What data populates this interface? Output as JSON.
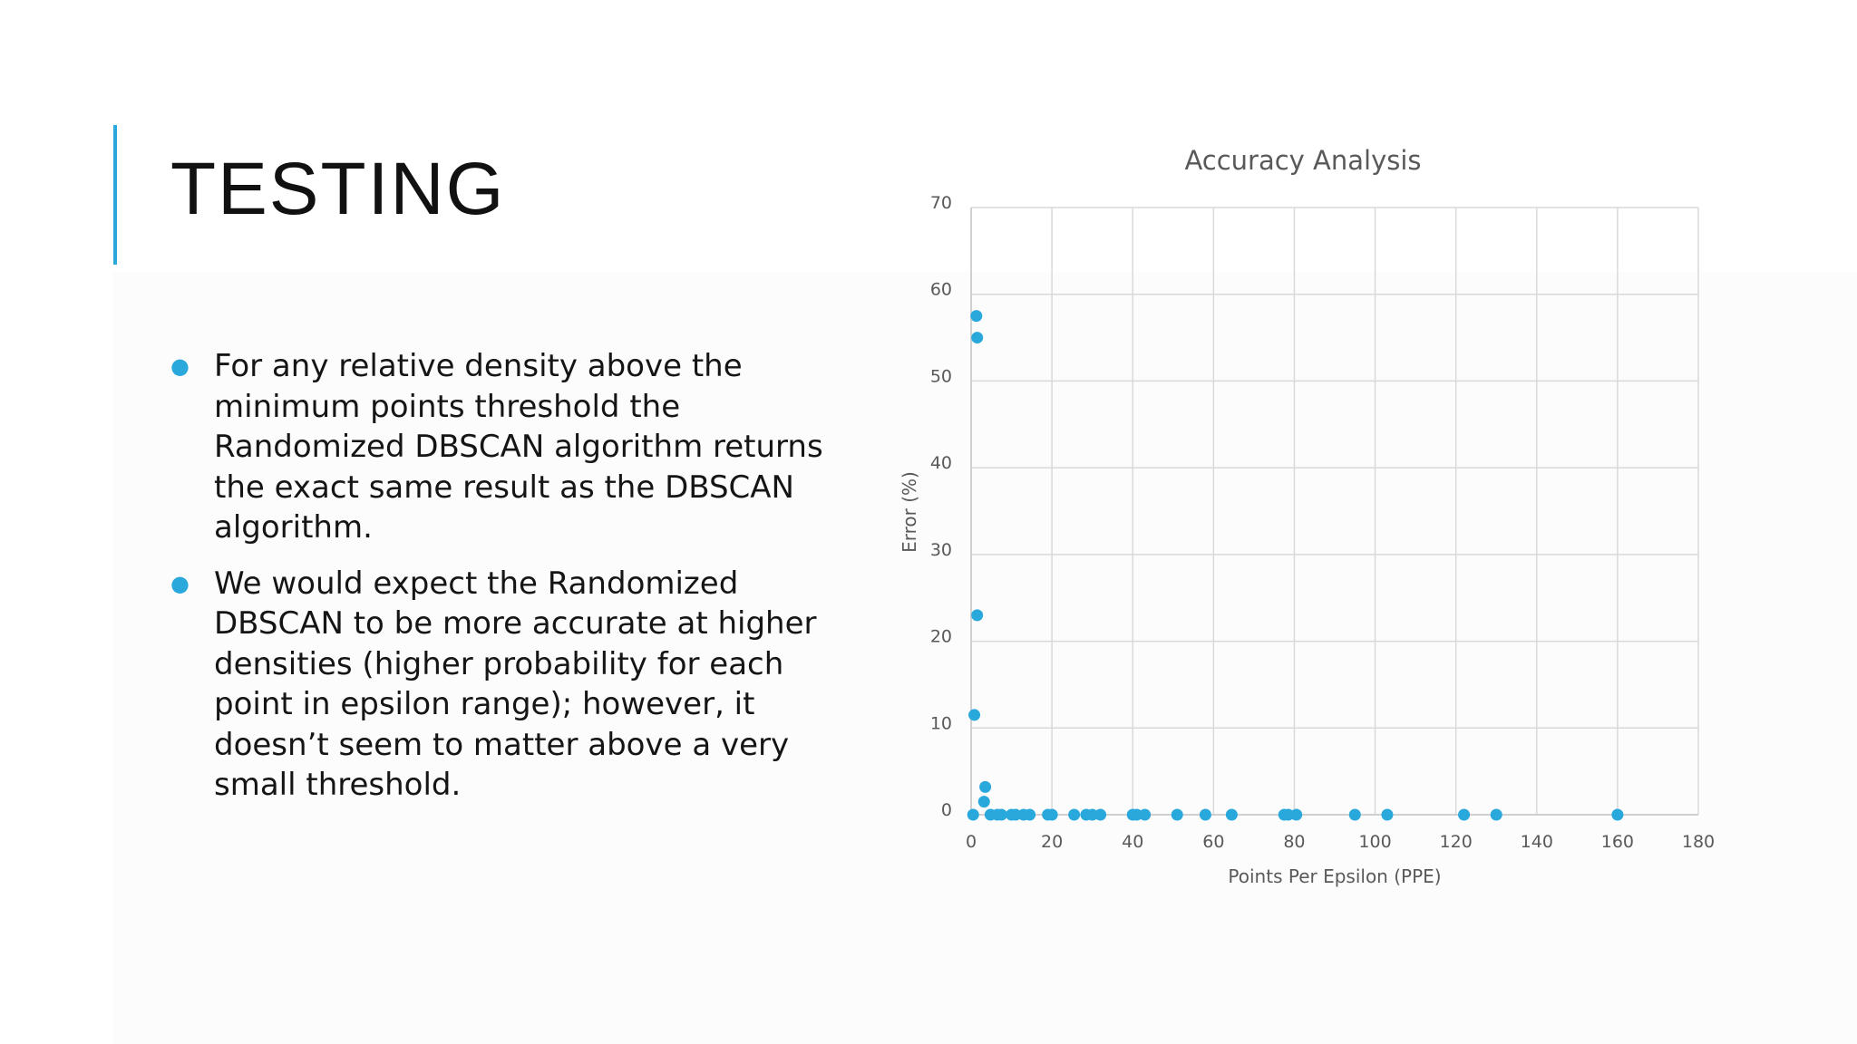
{
  "slide": {
    "title": "TESTING",
    "bullets": [
      "For any relative density above the minimum points threshold the Randomized DBSCAN algorithm returns the exact same result as the DBSCAN algorithm.",
      "We would expect the Randomized DBSCAN to be more accurate at higher densities (higher probability for each point in epsilon range); however, it doesn’t seem to matter above a very small threshold."
    ],
    "accent_color": "#29a8dc"
  },
  "chart_data": {
    "type": "scatter",
    "title": "Accuracy Analysis",
    "xlabel": "Points Per Epsilon (PPE)",
    "ylabel": "Error (%)",
    "xlim": [
      0,
      180
    ],
    "ylim": [
      0,
      70
    ],
    "x_ticks": [
      "0",
      "20",
      "40",
      "60",
      "80",
      "100",
      "120",
      "140",
      "160",
      "180"
    ],
    "y_ticks": [
      "0",
      "10",
      "20",
      "30",
      "40",
      "50",
      "60",
      "70"
    ],
    "grid": true,
    "marker_color": "#29a8dc",
    "points": [
      {
        "x": 1.3,
        "y": 57.5
      },
      {
        "x": 1.5,
        "y": 55.0
      },
      {
        "x": 1.5,
        "y": 23.0
      },
      {
        "x": 0.8,
        "y": 11.5
      },
      {
        "x": 3.5,
        "y": 3.2
      },
      {
        "x": 3.2,
        "y": 1.5
      },
      {
        "x": 0.5,
        "y": 0
      },
      {
        "x": 4.8,
        "y": 0
      },
      {
        "x": 6.5,
        "y": 0
      },
      {
        "x": 7.5,
        "y": 0
      },
      {
        "x": 10,
        "y": 0
      },
      {
        "x": 11,
        "y": 0
      },
      {
        "x": 13,
        "y": 0
      },
      {
        "x": 14.5,
        "y": 0
      },
      {
        "x": 19,
        "y": 0
      },
      {
        "x": 20,
        "y": 0
      },
      {
        "x": 25.5,
        "y": 0
      },
      {
        "x": 28.5,
        "y": 0
      },
      {
        "x": 30,
        "y": 0
      },
      {
        "x": 32,
        "y": 0
      },
      {
        "x": 40,
        "y": 0
      },
      {
        "x": 41,
        "y": 0
      },
      {
        "x": 43,
        "y": 0
      },
      {
        "x": 51,
        "y": 0
      },
      {
        "x": 58,
        "y": 0
      },
      {
        "x": 64.5,
        "y": 0
      },
      {
        "x": 77.5,
        "y": 0
      },
      {
        "x": 78.5,
        "y": 0
      },
      {
        "x": 80.5,
        "y": 0
      },
      {
        "x": 95,
        "y": 0
      },
      {
        "x": 103,
        "y": 0
      },
      {
        "x": 122,
        "y": 0
      },
      {
        "x": 130,
        "y": 0
      },
      {
        "x": 160,
        "y": 0
      }
    ]
  }
}
